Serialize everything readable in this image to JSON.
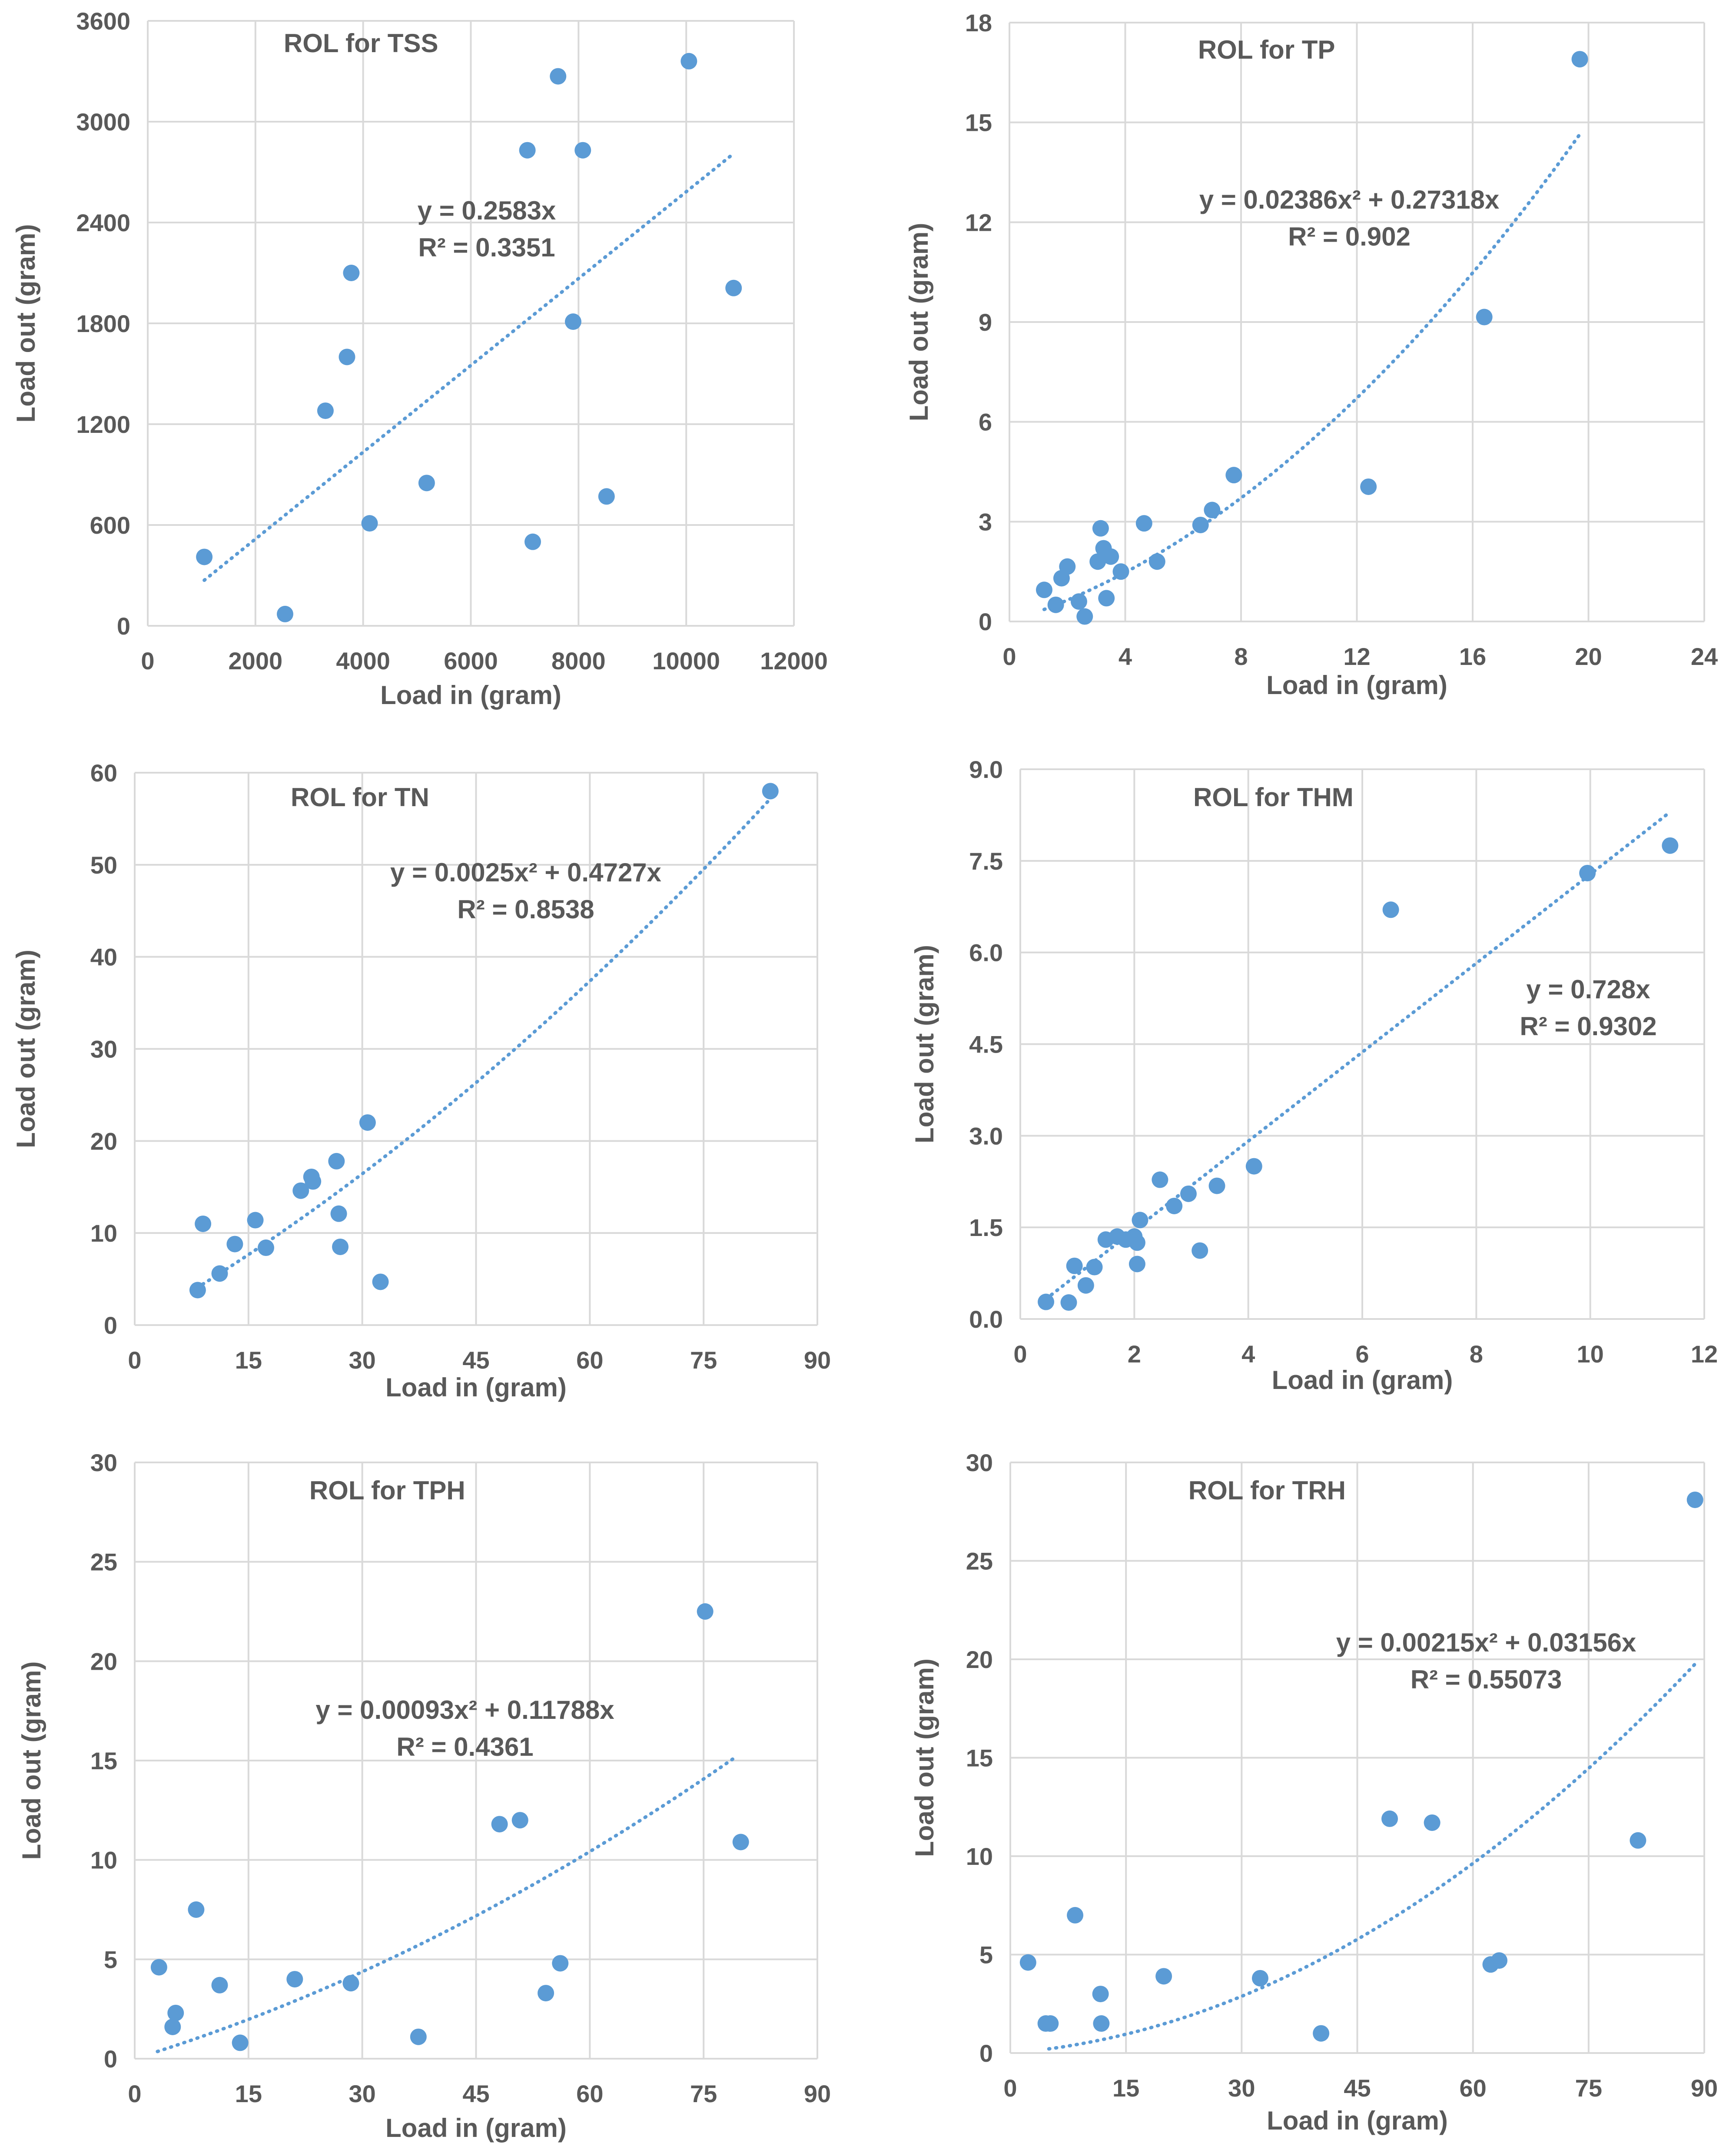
{
  "figure": {
    "name": "ROL regression panels"
  },
  "colors": {
    "marker": "#5b9bd5",
    "trend": "#5b9bd5",
    "grid": "#d9d9d9",
    "text": "#595959"
  },
  "chart_data": [
    {
      "type": "scatter",
      "title": "ROL for TSS",
      "xlabel": "Load in (gram)",
      "ylabel": "Load out (gram)",
      "xlim": [
        0,
        12000
      ],
      "ylim": [
        0,
        3600
      ],
      "xticks": [
        0,
        2000,
        4000,
        6000,
        8000,
        10000,
        12000
      ],
      "yticks": [
        0,
        600,
        1200,
        1800,
        2400,
        3000,
        3600
      ],
      "ytick_labels": [
        "0",
        "600",
        "1200",
        "1800",
        "2400",
        "3000",
        "3600"
      ],
      "equation": "y = 0.2583x",
      "r2": "R² = 0.3351",
      "trend": {
        "kind": "poly",
        "a": 0,
        "b": 0.2583,
        "xrange": [
          1050,
          10850
        ]
      },
      "points": [
        [
          1050,
          410
        ],
        [
          2550,
          70
        ],
        [
          3300,
          1280
        ],
        [
          3700,
          1600
        ],
        [
          3780,
          2100
        ],
        [
          4120,
          610
        ],
        [
          5180,
          850
        ],
        [
          7050,
          2830
        ],
        [
          7150,
          500
        ],
        [
          7620,
          3270
        ],
        [
          7900,
          1810
        ],
        [
          8080,
          2830
        ],
        [
          8520,
          770
        ],
        [
          10050,
          3360
        ],
        [
          10880,
          2010
        ]
      ]
    },
    {
      "type": "scatter",
      "title": "ROL for TP",
      "xlabel": "Load in (gram)",
      "ylabel": "Load out (gram)",
      "xlim": [
        0,
        24
      ],
      "ylim": [
        0,
        18
      ],
      "xticks": [
        0,
        4,
        8,
        12,
        16,
        20,
        24
      ],
      "yticks": [
        0,
        3,
        6,
        9,
        12,
        15,
        18
      ],
      "ytick_labels": [
        "0",
        "3",
        "6",
        "9",
        "12",
        "15",
        "18"
      ],
      "equation": "y = 0.02386x² + 0.27318x",
      "r2": "R² = 0.902",
      "trend": {
        "kind": "poly",
        "a": 0.02386,
        "b": 0.27318,
        "xrange": [
          1.2,
          19.7
        ]
      },
      "points": [
        [
          1.2,
          0.95
        ],
        [
          1.6,
          0.5
        ],
        [
          1.8,
          1.3
        ],
        [
          2.0,
          1.65
        ],
        [
          2.4,
          0.6
        ],
        [
          2.6,
          0.15
        ],
        [
          3.05,
          1.8
        ],
        [
          3.15,
          2.8
        ],
        [
          3.25,
          2.2
        ],
        [
          3.35,
          0.7
        ],
        [
          3.5,
          1.95
        ],
        [
          3.85,
          1.5
        ],
        [
          4.65,
          2.95
        ],
        [
          5.1,
          1.8
        ],
        [
          6.6,
          2.9
        ],
        [
          7.0,
          3.35
        ],
        [
          7.75,
          4.4
        ],
        [
          12.4,
          4.05
        ],
        [
          16.4,
          9.15
        ],
        [
          19.7,
          16.9
        ]
      ]
    },
    {
      "type": "scatter",
      "title": "ROL for TN",
      "xlabel": "Load in (gram)",
      "ylabel": "Load out (gram)",
      "xlim": [
        0,
        90
      ],
      "ylim": [
        0,
        60
      ],
      "xticks": [
        0,
        15,
        30,
        45,
        60,
        75,
        90
      ],
      "yticks": [
        0,
        10,
        20,
        30,
        40,
        50,
        60
      ],
      "ytick_labels": [
        "0",
        "10",
        "20",
        "30",
        "40",
        "50",
        "60"
      ],
      "equation": "y = 0.0025x² + 0.4727x",
      "r2": "R² = 0.8538",
      "trend": {
        "kind": "poly",
        "a": 0.0025,
        "b": 0.4727,
        "xrange": [
          8.2,
          83.8
        ]
      },
      "points": [
        [
          8.3,
          3.8
        ],
        [
          9.0,
          11.0
        ],
        [
          11.2,
          5.6
        ],
        [
          13.2,
          8.8
        ],
        [
          15.9,
          11.4
        ],
        [
          17.3,
          8.4
        ],
        [
          21.9,
          14.6
        ],
        [
          23.3,
          16.1
        ],
        [
          23.5,
          15.6
        ],
        [
          26.6,
          17.8
        ],
        [
          26.9,
          12.1
        ],
        [
          27.1,
          8.5
        ],
        [
          30.7,
          22.0
        ],
        [
          32.4,
          4.7
        ],
        [
          83.8,
          58.0
        ]
      ]
    },
    {
      "type": "scatter",
      "title": "ROL for THM",
      "xlabel": "Load in (gram)",
      "ylabel": "Load out (gram)",
      "xlim": [
        0,
        12
      ],
      "ylim": [
        0,
        9
      ],
      "xticks": [
        0,
        2,
        4,
        6,
        8,
        10,
        12
      ],
      "yticks": [
        0,
        1.5,
        3,
        4.5,
        6,
        7.5,
        9
      ],
      "ytick_labels": [
        "0.0",
        "1.5",
        "3.0",
        "4.5",
        "6.0",
        "7.5",
        "9.0"
      ],
      "equation": "y = 0.728x",
      "r2": "R² = 0.9302",
      "trend": {
        "kind": "poly",
        "a": 0,
        "b": 0.728,
        "xrange": [
          0.45,
          11.4
        ]
      },
      "points": [
        [
          0.45,
          0.28
        ],
        [
          0.85,
          0.27
        ],
        [
          0.95,
          0.87
        ],
        [
          1.15,
          0.55
        ],
        [
          1.3,
          0.85
        ],
        [
          1.5,
          1.3
        ],
        [
          1.7,
          1.35
        ],
        [
          1.85,
          1.3
        ],
        [
          2.0,
          1.35
        ],
        [
          2.05,
          0.9
        ],
        [
          2.05,
          1.25
        ],
        [
          2.1,
          1.62
        ],
        [
          2.45,
          2.28
        ],
        [
          2.7,
          1.85
        ],
        [
          2.95,
          2.05
        ],
        [
          3.15,
          1.12
        ],
        [
          3.45,
          2.18
        ],
        [
          4.1,
          2.5
        ],
        [
          6.5,
          6.7
        ],
        [
          9.95,
          7.3
        ],
        [
          11.4,
          7.75
        ]
      ]
    },
    {
      "type": "scatter",
      "title": "ROL for TPH",
      "xlabel": "Load in (gram)",
      "ylabel": "Load out (gram)",
      "xlim": [
        0,
        90
      ],
      "ylim": [
        0,
        30
      ],
      "xticks": [
        0,
        15,
        30,
        45,
        60,
        75,
        90
      ],
      "yticks": [
        0,
        5,
        10,
        15,
        20,
        25,
        30
      ],
      "ytick_labels": [
        "0",
        "5",
        "10",
        "15",
        "20",
        "25",
        "30"
      ],
      "equation": "y = 0.00093x² + 0.11788x",
      "r2": "R² = 0.4361",
      "trend": {
        "kind": "poly",
        "a": 0.00093,
        "b": 0.11788,
        "xrange": [
          3.0,
          79.0
        ]
      },
      "points": [
        [
          3.2,
          4.6
        ],
        [
          5.0,
          1.6
        ],
        [
          5.4,
          2.3
        ],
        [
          8.1,
          7.5
        ],
        [
          11.2,
          3.7
        ],
        [
          13.9,
          0.8
        ],
        [
          21.1,
          4.0
        ],
        [
          28.5,
          3.8
        ],
        [
          37.4,
          1.1
        ],
        [
          48.1,
          11.8
        ],
        [
          50.8,
          12.0
        ],
        [
          54.2,
          3.3
        ],
        [
          56.1,
          4.8
        ],
        [
          75.2,
          22.5
        ],
        [
          79.9,
          10.9
        ]
      ]
    },
    {
      "type": "scatter",
      "title": "ROL for TRH",
      "xlabel": "Load in (gram)",
      "ylabel": "Load out (gram)",
      "xlim": [
        0,
        90
      ],
      "ylim": [
        0,
        30
      ],
      "xticks": [
        0,
        15,
        30,
        45,
        60,
        75,
        90
      ],
      "yticks": [
        0,
        5,
        10,
        15,
        20,
        25,
        30
      ],
      "ytick_labels": [
        "0",
        "5",
        "10",
        "15",
        "20",
        "25",
        "30"
      ],
      "equation": "y = 0.00215x² + 0.03156x",
      "r2": "R² = 0.55073",
      "trend": {
        "kind": "poly",
        "a": 0.00215,
        "b": 0.03156,
        "xrange": [
          5.0,
          88.8
        ]
      },
      "points": [
        [
          2.3,
          4.6
        ],
        [
          4.6,
          1.5
        ],
        [
          5.2,
          1.5
        ],
        [
          8.4,
          7.0
        ],
        [
          11.7,
          3.0
        ],
        [
          11.8,
          1.5
        ],
        [
          19.9,
          3.9
        ],
        [
          32.4,
          3.8
        ],
        [
          40.3,
          1.0
        ],
        [
          49.2,
          11.9
        ],
        [
          54.7,
          11.7
        ],
        [
          62.3,
          4.5
        ],
        [
          63.4,
          4.7
        ],
        [
          81.4,
          10.8
        ],
        [
          88.8,
          28.1
        ]
      ]
    }
  ]
}
